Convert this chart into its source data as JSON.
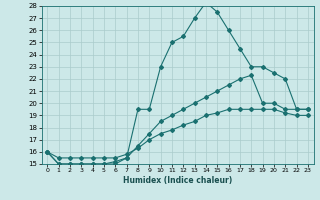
{
  "xlabel": "Humidex (Indice chaleur)",
  "ylabel": "",
  "xlim": [
    -0.5,
    23.5
  ],
  "ylim": [
    15,
    28
  ],
  "yticks": [
    15,
    16,
    17,
    18,
    19,
    20,
    21,
    22,
    23,
    24,
    25,
    26,
    27,
    28
  ],
  "xticks": [
    0,
    1,
    2,
    3,
    4,
    5,
    6,
    7,
    8,
    9,
    10,
    11,
    12,
    13,
    14,
    15,
    16,
    17,
    18,
    19,
    20,
    21,
    22,
    23
  ],
  "bg_color": "#cce8e8",
  "grid_color": "#aacccc",
  "line_color": "#1a7070",
  "line1_x": [
    0,
    1,
    2,
    3,
    4,
    5,
    6,
    7,
    8,
    9,
    10,
    11,
    12,
    13,
    14,
    15,
    16,
    17,
    18,
    19,
    20,
    21,
    22,
    23
  ],
  "line1_y": [
    16,
    15,
    15,
    15,
    15,
    15,
    15,
    15.5,
    19.5,
    19.5,
    23,
    25,
    25.5,
    27,
    28.3,
    27.5,
    26,
    24.5,
    23,
    23,
    22.5,
    22,
    19.5,
    19.5
  ],
  "line2_x": [
    0,
    1,
    2,
    3,
    4,
    5,
    6,
    7,
    8,
    9,
    10,
    11,
    12,
    13,
    14,
    15,
    16,
    17,
    18,
    19,
    20,
    21,
    22,
    23
  ],
  "line2_y": [
    16,
    15,
    15,
    15,
    15,
    15,
    15.2,
    15.5,
    16.5,
    17.5,
    18.5,
    19,
    19.5,
    20,
    20.5,
    21,
    21.5,
    22,
    22.3,
    20,
    20,
    19.5,
    19.5,
    19.5
  ],
  "line3_x": [
    0,
    1,
    2,
    3,
    4,
    5,
    6,
    7,
    8,
    9,
    10,
    11,
    12,
    13,
    14,
    15,
    16,
    17,
    18,
    19,
    20,
    21,
    22,
    23
  ],
  "line3_y": [
    16,
    15.5,
    15.5,
    15.5,
    15.5,
    15.5,
    15.5,
    15.8,
    16.3,
    17,
    17.5,
    17.8,
    18.2,
    18.5,
    19,
    19.2,
    19.5,
    19.5,
    19.5,
    19.5,
    19.5,
    19.2,
    19,
    19
  ]
}
